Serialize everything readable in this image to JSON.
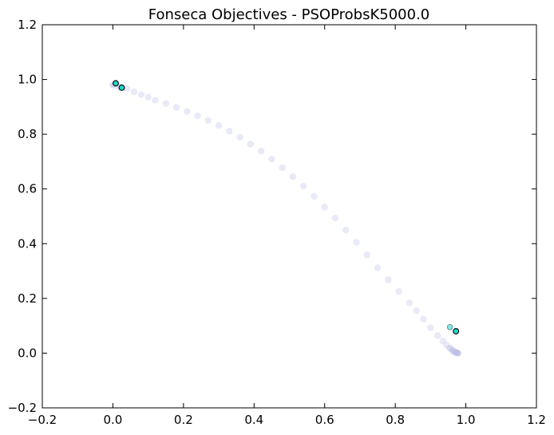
{
  "chart_data": {
    "type": "scatter",
    "title": "Fonseca Objectives - PSOProbsK5000.0",
    "xlabel": "",
    "ylabel": "",
    "xlim": [
      -0.2,
      1.2
    ],
    "ylim": [
      -0.2,
      1.2
    ],
    "xticks": [
      "−0.2",
      "0.0",
      "0.2",
      "0.4",
      "0.6",
      "0.8",
      "1.0",
      "1.2"
    ],
    "yticks": [
      "−0.2",
      "0.0",
      "0.2",
      "0.4",
      "0.6",
      "0.8",
      "1.0",
      "1.2"
    ],
    "grid": false,
    "legend": "none",
    "colors": {
      "front": "#d6d8f2",
      "front_dense": "#b9bce6",
      "highlight_fill": "#20d6cc",
      "highlight_fill_light": "#7fe8e2",
      "marker_edge": "#000000"
    },
    "series": [
      {
        "role": "pareto-front",
        "marker": "o",
        "x": [
          0.0,
          0.01,
          0.02,
          0.04,
          0.06,
          0.08,
          0.1,
          0.12,
          0.15,
          0.18,
          0.21,
          0.24,
          0.27,
          0.3,
          0.33,
          0.36,
          0.39,
          0.42,
          0.45,
          0.48,
          0.51,
          0.54,
          0.57,
          0.6,
          0.63,
          0.66,
          0.69,
          0.72,
          0.75,
          0.78,
          0.81,
          0.84,
          0.86,
          0.88,
          0.9,
          0.92,
          0.935,
          0.945,
          0.955,
          0.962,
          0.968,
          0.972,
          0.975,
          0.978
        ],
        "y": [
          0.98,
          0.978,
          0.974,
          0.966,
          0.955,
          0.945,
          0.935,
          0.924,
          0.912,
          0.898,
          0.883,
          0.867,
          0.85,
          0.832,
          0.811,
          0.789,
          0.764,
          0.738,
          0.709,
          0.678,
          0.645,
          0.61,
          0.573,
          0.534,
          0.493,
          0.45,
          0.405,
          0.359,
          0.312,
          0.268,
          0.225,
          0.184,
          0.155,
          0.124,
          0.093,
          0.064,
          0.044,
          0.03,
          0.018,
          0.01,
          0.005,
          0.002,
          0.001,
          0.0
        ]
      },
      {
        "role": "highlighted-points",
        "marker": "o",
        "x": [
          0.008,
          0.025,
          0.955,
          0.972
        ],
        "y": [
          0.986,
          0.97,
          0.095,
          0.08
        ]
      }
    ]
  }
}
